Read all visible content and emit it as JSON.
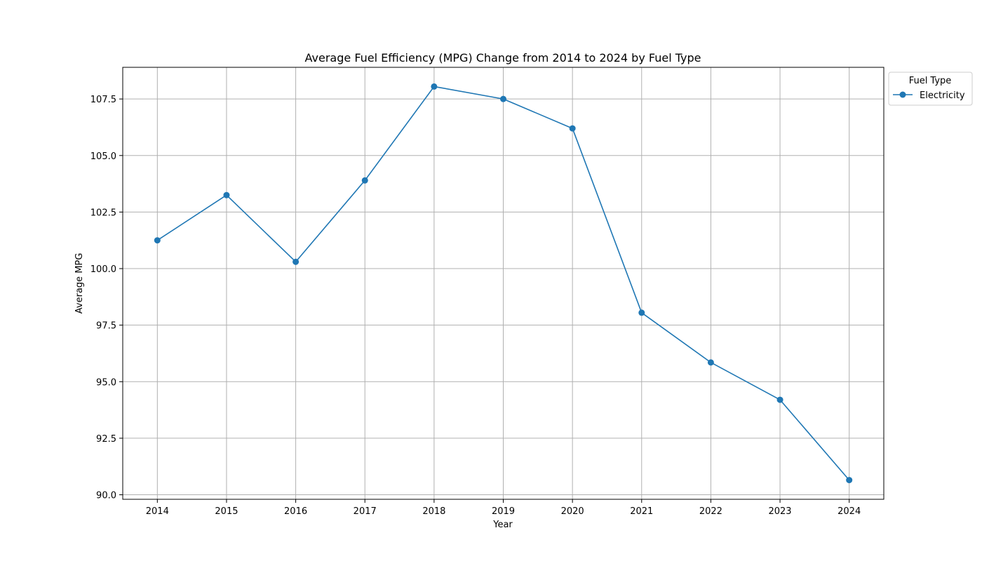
{
  "chart_data": {
    "type": "line",
    "title": "Average Fuel Efficiency (MPG) Change from 2014 to 2024 by Fuel Type",
    "xlabel": "Year",
    "ylabel": "Average MPG",
    "x": [
      2014,
      2015,
      2016,
      2017,
      2018,
      2019,
      2020,
      2021,
      2022,
      2023,
      2024
    ],
    "x_tick_labels": [
      "2014",
      "2015",
      "2016",
      "2017",
      "2018",
      "2019",
      "2020",
      "2021",
      "2022",
      "2023",
      "2024"
    ],
    "y_ticks": [
      90.0,
      92.5,
      95.0,
      97.5,
      100.0,
      102.5,
      105.0,
      107.5
    ],
    "y_tick_labels": [
      "90.0",
      "92.5",
      "95.0",
      "97.5",
      "100.0",
      "102.5",
      "105.0",
      "107.5"
    ],
    "ylim": [
      89.8,
      108.9
    ],
    "xlim": [
      2013.5,
      2024.5
    ],
    "grid": true,
    "legend": {
      "title": "Fuel Type",
      "placement": "outside-upper-right"
    },
    "series": [
      {
        "name": "Electricity",
        "color": "#1f77b4",
        "marker": "circle",
        "values": [
          101.25,
          103.25,
          100.3,
          103.9,
          108.05,
          107.5,
          106.2,
          98.05,
          95.85,
          94.2,
          90.65
        ]
      }
    ]
  }
}
